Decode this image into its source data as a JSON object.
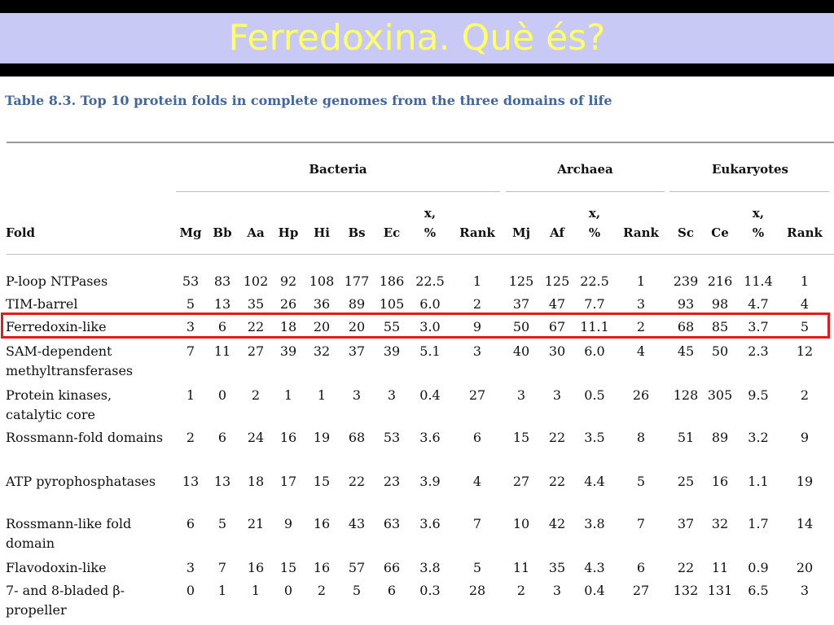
{
  "slide": {
    "title": "Ferredoxina. Què és?"
  },
  "table": {
    "caption": "Table 8.3. Top 10 protein folds in complete genomes from the three domains of life",
    "groups": [
      "Bacteria",
      "Archaea",
      "Eukaryotes"
    ],
    "header_fold": "Fold",
    "columns": [
      "Mg",
      "Bb",
      "Aa",
      "Hp",
      "Hi",
      "Bs",
      "Ec",
      "x,\n%",
      "Rank",
      "Mj",
      "Af",
      "x,\n%",
      "Rank",
      "Sc",
      "Ce",
      "x,\n%",
      "Rank"
    ],
    "highlighted_row": "Ferredoxin-like",
    "rows": [
      {
        "fold": "P-loop NTPases",
        "values": [
          "53",
          "83",
          "102",
          "92",
          "108",
          "177",
          "186",
          "22.5",
          "1",
          "125",
          "125",
          "22.5",
          "1",
          "239",
          "216",
          "11.4",
          "1"
        ]
      },
      {
        "fold": "TIM-barrel",
        "values": [
          "5",
          "13",
          "35",
          "26",
          "36",
          "89",
          "105",
          "6.0",
          "2",
          "37",
          "47",
          "7.7",
          "3",
          "93",
          "98",
          "4.7",
          "4"
        ]
      },
      {
        "fold": "Ferredoxin-like",
        "values": [
          "3",
          "6",
          "22",
          "18",
          "20",
          "20",
          "55",
          "3.0",
          "9",
          "50",
          "67",
          "11.1",
          "2",
          "68",
          "85",
          "3.7",
          "5"
        ]
      },
      {
        "fold": "SAM-dependent methyltransferases",
        "values": [
          "7",
          "11",
          "27",
          "39",
          "32",
          "37",
          "39",
          "5.1",
          "3",
          "40",
          "30",
          "6.0",
          "4",
          "45",
          "50",
          "2.3",
          "12"
        ]
      },
      {
        "fold": "Protein kinases, catalytic core",
        "values": [
          "1",
          "0",
          "2",
          "1",
          "1",
          "3",
          "3",
          "0.4",
          "27",
          "3",
          "3",
          "0.5",
          "26",
          "128",
          "305",
          "9.5",
          "2"
        ]
      },
      {
        "fold": "Rossmann-fold domains",
        "values": [
          "2",
          "6",
          "24",
          "16",
          "19",
          "68",
          "53",
          "3.6",
          "6",
          "15",
          "22",
          "3.5",
          "8",
          "51",
          "89",
          "3.2",
          "9"
        ]
      },
      {
        "fold": "ATP pyrophosphatases",
        "values": [
          "13",
          "13",
          "18",
          "17",
          "15",
          "22",
          "23",
          "3.9",
          "4",
          "27",
          "22",
          "4.4",
          "5",
          "25",
          "16",
          "1.1",
          "19"
        ]
      },
      {
        "fold": "Rossmann-like fold domain",
        "values": [
          "6",
          "5",
          "21",
          "9",
          "16",
          "43",
          "63",
          "3.6",
          "7",
          "10",
          "42",
          "3.8",
          "7",
          "37",
          "32",
          "1.7",
          "14"
        ]
      },
      {
        "fold": "Flavodoxin-like",
        "values": [
          "3",
          "7",
          "16",
          "15",
          "16",
          "57",
          "66",
          "3.8",
          "5",
          "11",
          "35",
          "4.3",
          "6",
          "22",
          "11",
          "0.9",
          "20"
        ]
      },
      {
        "fold": "7- and 8-bladed β-propeller",
        "values": [
          "0",
          "1",
          "1",
          "0",
          "2",
          "5",
          "6",
          "0.3",
          "28",
          "2",
          "3",
          "0.4",
          "27",
          "132",
          "131",
          "6.5",
          "3"
        ]
      }
    ]
  }
}
